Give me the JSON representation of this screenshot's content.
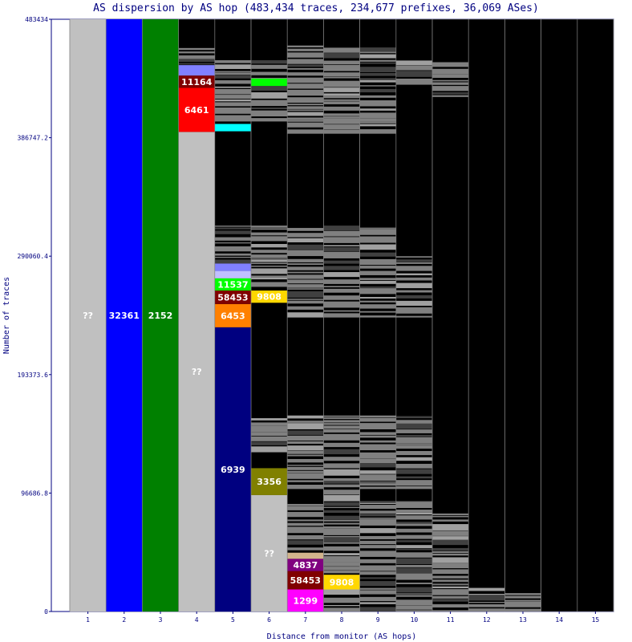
{
  "chart_data": {
    "type": "bar",
    "title": "AS dispersion by AS hop (483,434 traces, 234,677 prefixes, 36,069 ASes)",
    "xlabel": "Distance from monitor (AS hops)",
    "ylabel": "Number of traces",
    "ylim": [
      0,
      483434
    ],
    "y_ticks": [
      "0",
      "96686.8",
      "193373.6",
      "290060.4",
      "386747.2",
      "483434"
    ],
    "categories": [
      "1",
      "2",
      "3",
      "4",
      "5",
      "6",
      "7",
      "8",
      "9",
      "10",
      "11",
      "12",
      "13",
      "14",
      "15"
    ],
    "background_color": "#000000",
    "other_as_color": "#808080",
    "unknown_color": "#c0c0c0",
    "segments": [
      {
        "hop": 1,
        "from": 0,
        "to": 483434,
        "label": "??",
        "color": "#c0c0c0"
      },
      {
        "hop": 2,
        "from": 0,
        "to": 483434,
        "label": "32361",
        "color": "#0000ff"
      },
      {
        "hop": 3,
        "from": 0,
        "to": 483434,
        "label": "2152",
        "color": "#008000"
      },
      {
        "hop": 4,
        "from": 0,
        "to": 391500,
        "label": "??",
        "color": "#c0c0c0"
      },
      {
        "hop": 4,
        "from": 391500,
        "to": 427500,
        "label": "6461",
        "color": "#ff0000"
      },
      {
        "hop": 4,
        "from": 427500,
        "to": 437500,
        "label": "11164",
        "color": "#800000"
      },
      {
        "hop": 4,
        "from": 437500,
        "to": 446000,
        "label": "",
        "color": "#8080ff"
      },
      {
        "hop": 5,
        "from": 0,
        "to": 232000,
        "label": "6939",
        "color": "#000080"
      },
      {
        "hop": 5,
        "from": 232000,
        "to": 251000,
        "label": "6453",
        "color": "#ff8000"
      },
      {
        "hop": 5,
        "from": 251000,
        "to": 262000,
        "label": "58453",
        "color": "#800000"
      },
      {
        "hop": 5,
        "from": 262000,
        "to": 272000,
        "label": "11537",
        "color": "#00ff00"
      },
      {
        "hop": 5,
        "from": 272000,
        "to": 278000,
        "label": "",
        "color": "#c0c0ff"
      },
      {
        "hop": 5,
        "from": 278000,
        "to": 284000,
        "label": "",
        "color": "#8080ff"
      },
      {
        "hop": 5,
        "from": 392000,
        "to": 398000,
        "label": "",
        "color": "#00ffff"
      },
      {
        "hop": 6,
        "from": 0,
        "to": 95000,
        "label": "??",
        "color": "#c0c0c0"
      },
      {
        "hop": 6,
        "from": 95000,
        "to": 117000,
        "label": "3356",
        "color": "#808000"
      },
      {
        "hop": 6,
        "from": 252000,
        "to": 262000,
        "label": "9808",
        "color": "#ffd700"
      },
      {
        "hop": 6,
        "from": 429000,
        "to": 435000,
        "label": "",
        "color": "#00ff00"
      },
      {
        "hop": 7,
        "from": 0,
        "to": 18000,
        "label": "1299",
        "color": "#ff00ff"
      },
      {
        "hop": 7,
        "from": 18000,
        "to": 33000,
        "label": "58453",
        "color": "#800000"
      },
      {
        "hop": 7,
        "from": 33000,
        "to": 43000,
        "label": "4837",
        "color": "#800080"
      },
      {
        "hop": 7,
        "from": 43000,
        "to": 48000,
        "label": "",
        "color": "#d2b48c"
      },
      {
        "hop": 8,
        "from": 18000,
        "to": 30000,
        "label": "9808",
        "color": "#ffd700"
      }
    ]
  }
}
